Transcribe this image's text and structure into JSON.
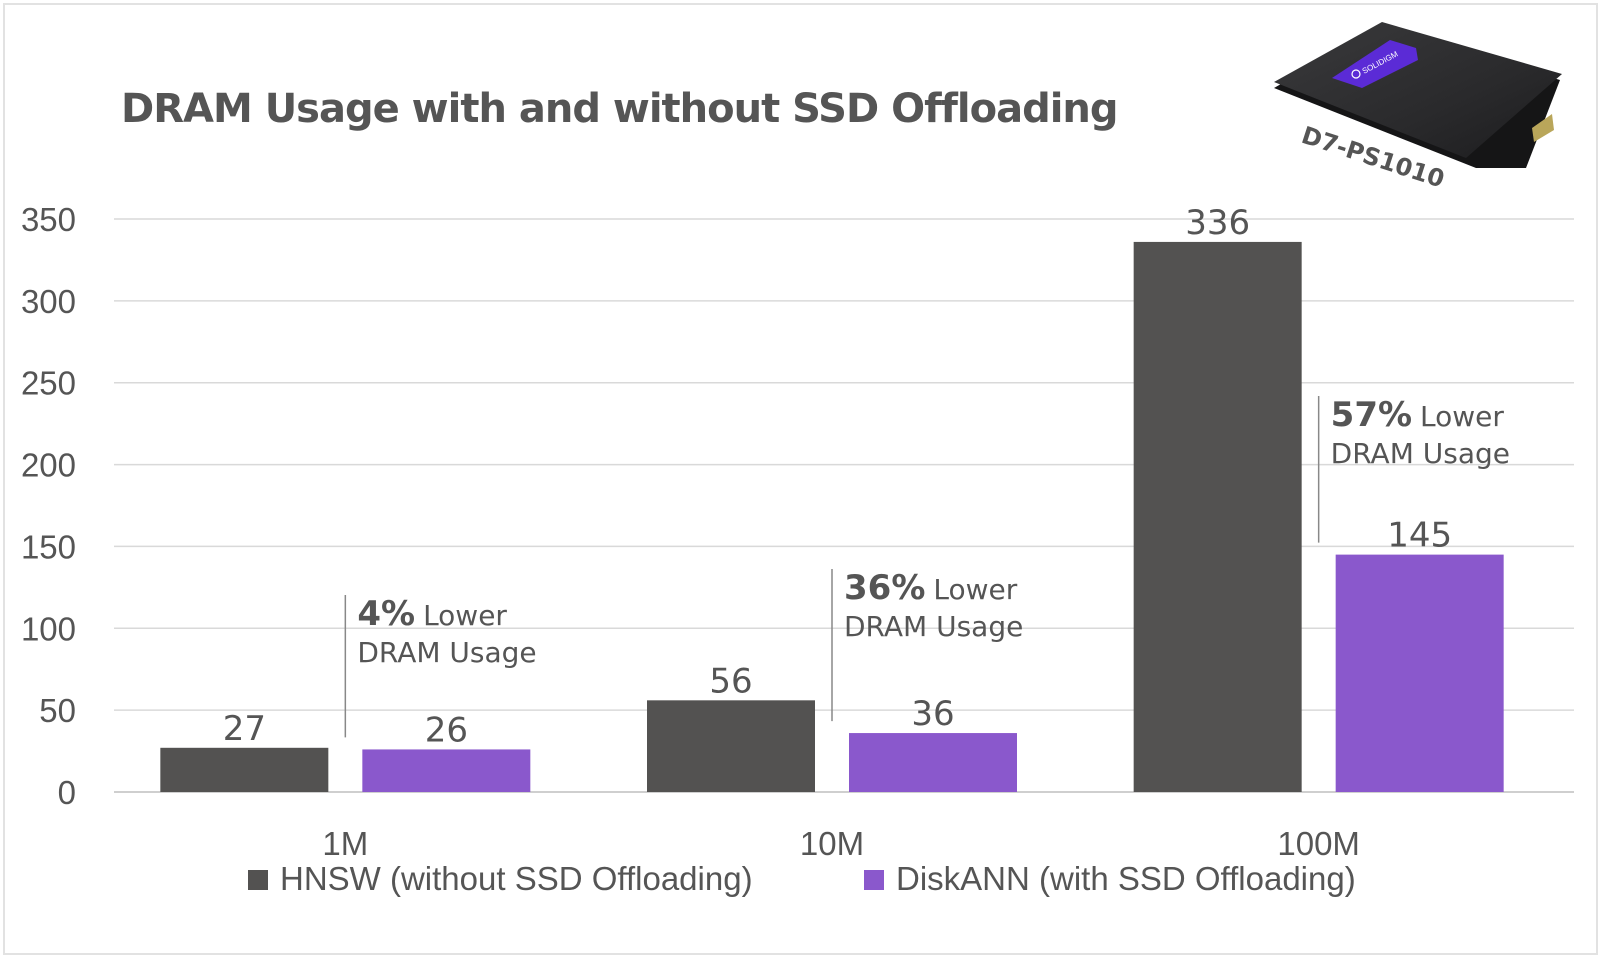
{
  "chart_data": {
    "type": "bar",
    "title": "DRAM Usage with and without SSD Offloading",
    "xlabel": "",
    "ylabel": "",
    "ylim": [
      0,
      350
    ],
    "yticks": [
      "0",
      "50",
      "100",
      "150",
      "200",
      "250",
      "300",
      "350"
    ],
    "ytick_values": [
      0,
      50,
      100,
      150,
      200,
      250,
      300,
      350
    ],
    "grid": true,
    "categories": [
      "1M",
      "10M",
      "100M"
    ],
    "series": [
      {
        "name": "HNSW (without SSD Offloading)",
        "color": "#535251",
        "values": [
          27,
          56,
          336
        ],
        "labels": [
          "27",
          "56",
          "336"
        ]
      },
      {
        "name": "DiskANN (with SSD Offloading)",
        "color": "#8a58cc",
        "values": [
          26,
          36,
          145
        ],
        "labels": [
          "26",
          "36",
          "145"
        ]
      }
    ],
    "legend_position": "bottom",
    "annotations": [
      {
        "category": "1M",
        "percent": "4%",
        "line1": "Lower",
        "line2": "DRAM Usage"
      },
      {
        "category": "10M",
        "percent": "36%",
        "line1": "Lower",
        "line2": "DRAM Usage"
      },
      {
        "category": "100M",
        "percent": "57%",
        "line1": "Lower",
        "line2": "DRAM Usage"
      }
    ],
    "product_image": {
      "label": "D7-PS1010",
      "brand": "SOLIDIGM"
    }
  },
  "colors": {
    "text": "#555555",
    "grid": "#d9d9d9",
    "hnsw": "#535251",
    "diskann": "#8a58cc"
  }
}
